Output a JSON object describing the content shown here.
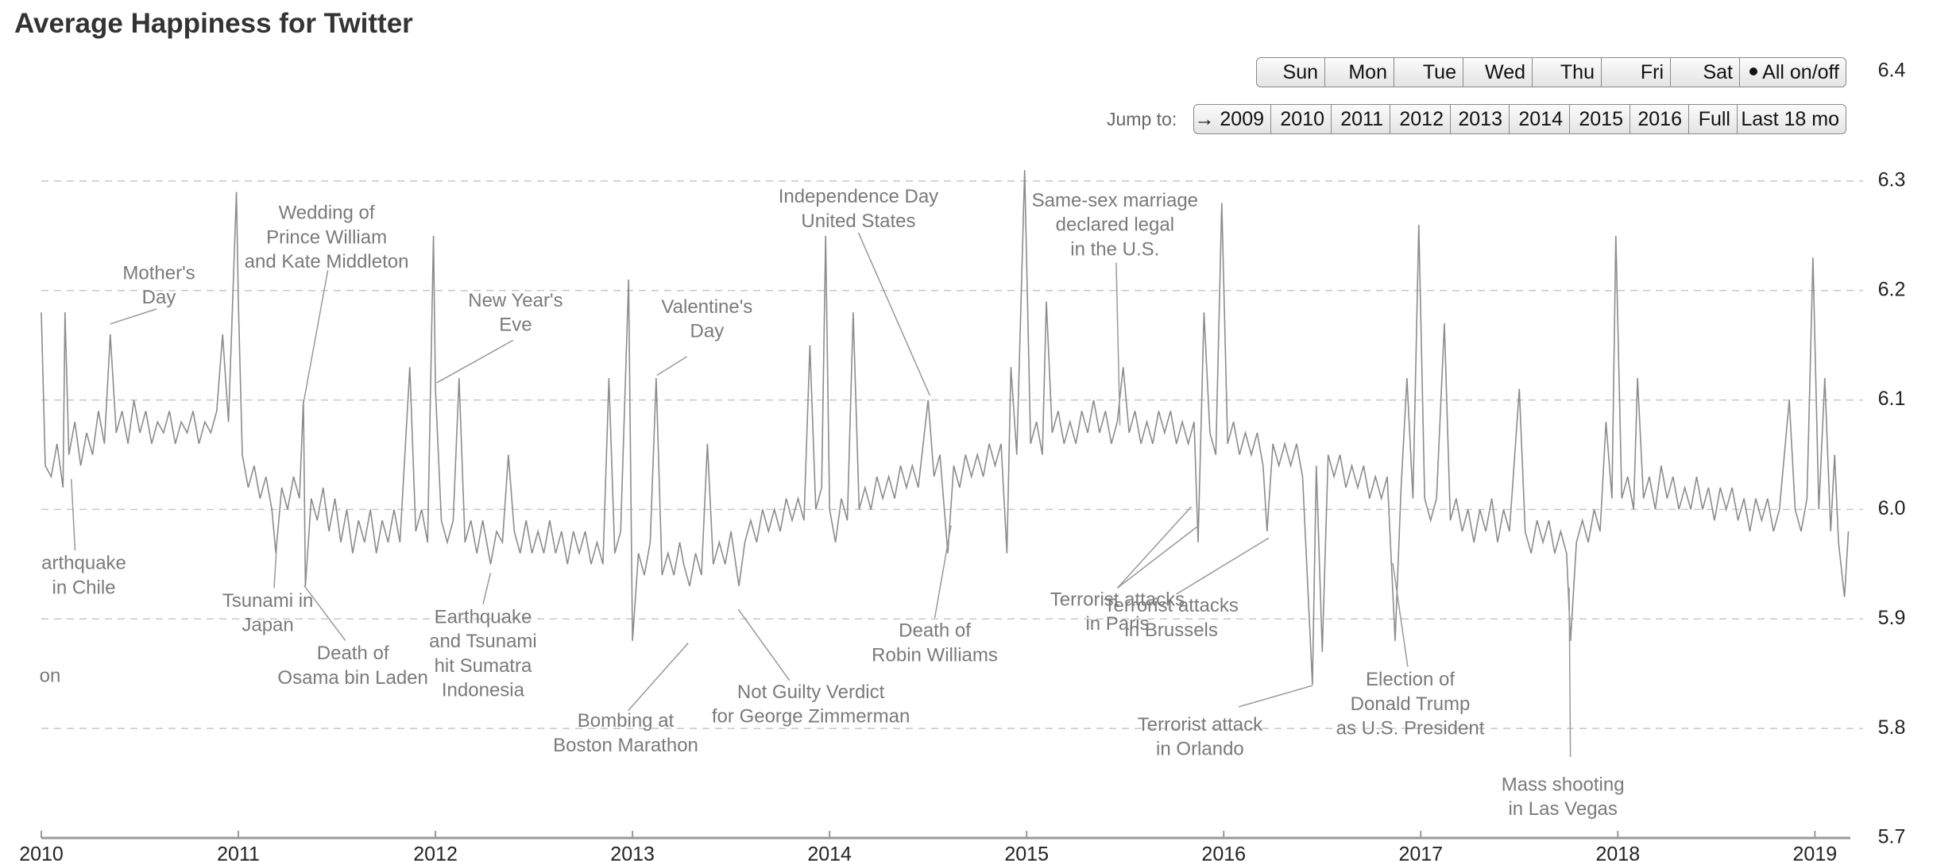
{
  "chart_data": {
    "type": "line",
    "title": "Average Happiness for Twitter",
    "xlim": [
      2010,
      2019.18
    ],
    "xticks": [
      2010,
      2011,
      2012,
      2013,
      2014,
      2015,
      2016,
      2017,
      2018,
      2019
    ],
    "ylim": [
      5.7,
      6.4
    ],
    "yticks": [
      5.7,
      5.8,
      5.9,
      {
        "value": 6,
        "label": "6.0"
      },
      6.1,
      6.2,
      6.3,
      6.4
    ],
    "grid": true,
    "color": "#8c8c8c",
    "x": [
      2010.0,
      2010.02,
      2010.05,
      2010.08,
      2010.11,
      2010.12,
      2010.14,
      2010.17,
      2010.2,
      2010.23,
      2010.26,
      2010.29,
      2010.32,
      2010.35,
      2010.38,
      2010.41,
      2010.44,
      2010.47,
      2010.5,
      2010.53,
      2010.56,
      2010.59,
      2010.62,
      2010.65,
      2010.68,
      2010.71,
      2010.74,
      2010.77,
      2010.8,
      2010.83,
      2010.86,
      2010.89,
      2010.92,
      2010.95,
      2010.99,
      2011.0,
      2011.02,
      2011.05,
      2011.08,
      2011.11,
      2011.14,
      2011.17,
      2011.19,
      2011.22,
      2011.25,
      2011.28,
      2011.31,
      2011.33,
      2011.34,
      2011.37,
      2011.4,
      2011.43,
      2011.46,
      2011.49,
      2011.52,
      2011.55,
      2011.58,
      2011.61,
      2011.64,
      2011.67,
      2011.7,
      2011.73,
      2011.76,
      2011.79,
      2011.82,
      2011.87,
      2011.9,
      2011.93,
      2011.96,
      2011.99,
      2012.0,
      2012.03,
      2012.06,
      2012.09,
      2012.12,
      2012.15,
      2012.18,
      2012.21,
      2012.24,
      2012.28,
      2012.31,
      2012.34,
      2012.37,
      2012.4,
      2012.43,
      2012.46,
      2012.49,
      2012.52,
      2012.55,
      2012.58,
      2012.61,
      2012.64,
      2012.67,
      2012.7,
      2012.73,
      2012.76,
      2012.79,
      2012.82,
      2012.85,
      2012.88,
      2012.91,
      2012.94,
      2012.98,
      2013.0,
      2013.03,
      2013.06,
      2013.09,
      2013.12,
      2013.15,
      2013.18,
      2013.21,
      2013.24,
      2013.26,
      2013.29,
      2013.32,
      2013.35,
      2013.38,
      2013.41,
      2013.44,
      2013.47,
      2013.5,
      2013.54,
      2013.57,
      2013.6,
      2013.63,
      2013.66,
      2013.69,
      2013.72,
      2013.75,
      2013.78,
      2013.81,
      2013.84,
      2013.87,
      2013.9,
      2013.93,
      2013.96,
      2013.98,
      2014.0,
      2014.03,
      2014.06,
      2014.09,
      2014.12,
      2014.15,
      2014.18,
      2014.21,
      2014.24,
      2014.27,
      2014.3,
      2014.33,
      2014.36,
      2014.39,
      2014.42,
      2014.45,
      2014.5,
      2014.53,
      2014.56,
      2014.6,
      2014.63,
      2014.66,
      2014.69,
      2014.72,
      2014.75,
      2014.78,
      2014.81,
      2014.84,
      2014.87,
      2014.9,
      2014.92,
      2014.95,
      2014.99,
      2015.02,
      2015.05,
      2015.08,
      2015.1,
      2015.13,
      2015.16,
      2015.19,
      2015.22,
      2015.25,
      2015.28,
      2015.31,
      2015.34,
      2015.37,
      2015.4,
      2015.43,
      2015.46,
      2015.49,
      2015.52,
      2015.55,
      2015.58,
      2015.61,
      2015.64,
      2015.67,
      2015.7,
      2015.73,
      2015.76,
      2015.79,
      2015.82,
      2015.85,
      2015.87,
      2015.9,
      2015.93,
      2015.96,
      2015.99,
      2016.02,
      2016.05,
      2016.08,
      2016.11,
      2016.14,
      2016.17,
      2016.2,
      2016.22,
      2016.25,
      2016.28,
      2016.31,
      2016.34,
      2016.37,
      2016.4,
      2016.45,
      2016.47,
      2016.5,
      2016.53,
      2016.56,
      2016.59,
      2016.62,
      2016.65,
      2016.68,
      2016.71,
      2016.74,
      2016.77,
      2016.8,
      2016.83,
      2016.87,
      2016.9,
      2016.93,
      2016.96,
      2016.99,
      2017.02,
      2017.05,
      2017.08,
      2017.12,
      2017.15,
      2017.18,
      2017.21,
      2017.24,
      2017.27,
      2017.3,
      2017.33,
      2017.36,
      2017.39,
      2017.42,
      2017.45,
      2017.5,
      2017.53,
      2017.56,
      2017.59,
      2017.62,
      2017.65,
      2017.68,
      2017.71,
      2017.74,
      2017.76,
      2017.79,
      2017.82,
      2017.85,
      2017.88,
      2017.91,
      2017.94,
      2017.97,
      2017.99,
      2018.02,
      2018.05,
      2018.08,
      2018.1,
      2018.13,
      2018.16,
      2018.19,
      2018.22,
      2018.25,
      2018.28,
      2018.31,
      2018.34,
      2018.37,
      2018.4,
      2018.43,
      2018.46,
      2018.49,
      2018.52,
      2018.55,
      2018.58,
      2018.61,
      2018.64,
      2018.67,
      2018.7,
      2018.73,
      2018.76,
      2018.79,
      2018.82,
      2018.87,
      2018.9,
      2018.93,
      2018.96,
      2018.99,
      2019.02,
      2019.05,
      2019.08,
      2019.1,
      2019.12,
      2019.15,
      2019.17
    ],
    "values": [
      6.18,
      6.04,
      6.03,
      6.06,
      6.02,
      6.18,
      6.05,
      6.08,
      6.04,
      6.07,
      6.05,
      6.09,
      6.06,
      6.16,
      6.07,
      6.09,
      6.06,
      6.1,
      6.07,
      6.09,
      6.06,
      6.08,
      6.07,
      6.09,
      6.06,
      6.08,
      6.07,
      6.09,
      6.06,
      6.08,
      6.07,
      6.09,
      6.16,
      6.08,
      6.29,
      6.19,
      6.05,
      6.02,
      6.04,
      6.01,
      6.03,
      6.0,
      5.96,
      6.02,
      6.0,
      6.03,
      6.01,
      6.1,
      5.93,
      6.01,
      5.99,
      6.02,
      5.98,
      6.01,
      5.97,
      6.0,
      5.96,
      5.99,
      5.97,
      6.0,
      5.96,
      5.99,
      5.97,
      6.0,
      5.97,
      6.13,
      5.98,
      6.0,
      5.97,
      6.25,
      6.11,
      5.99,
      5.97,
      5.99,
      6.12,
      5.97,
      5.99,
      5.96,
      5.99,
      5.95,
      5.98,
      5.97,
      6.05,
      5.98,
      5.96,
      5.99,
      5.96,
      5.98,
      5.96,
      5.99,
      5.96,
      5.98,
      5.95,
      5.98,
      5.96,
      5.98,
      5.95,
      5.97,
      5.95,
      6.12,
      5.96,
      5.98,
      6.21,
      5.88,
      5.96,
      5.94,
      5.97,
      6.12,
      5.94,
      5.96,
      5.94,
      5.97,
      5.95,
      5.93,
      5.96,
      5.94,
      6.06,
      5.95,
      5.97,
      5.95,
      5.98,
      5.93,
      5.97,
      5.99,
      5.97,
      6.0,
      5.98,
      6.0,
      5.98,
      6.01,
      5.99,
      6.01,
      5.99,
      6.15,
      6.0,
      6.02,
      6.25,
      6.0,
      5.97,
      6.01,
      5.99,
      6.18,
      6.0,
      6.02,
      6.0,
      6.03,
      6.01,
      6.03,
      6.01,
      6.04,
      6.02,
      6.04,
      6.02,
      6.1,
      6.03,
      6.05,
      5.96,
      6.04,
      6.02,
      6.05,
      6.03,
      6.05,
      6.03,
      6.06,
      6.04,
      6.06,
      5.96,
      6.13,
      6.05,
      6.31,
      6.06,
      6.08,
      6.05,
      6.19,
      6.07,
      6.09,
      6.06,
      6.08,
      6.06,
      6.09,
      6.07,
      6.1,
      6.07,
      6.09,
      6.06,
      6.08,
      6.13,
      6.07,
      6.09,
      6.06,
      6.08,
      6.06,
      6.09,
      6.07,
      6.09,
      6.06,
      6.08,
      6.06,
      6.08,
      5.97,
      6.18,
      6.07,
      6.05,
      6.28,
      6.06,
      6.08,
      6.05,
      6.07,
      6.05,
      6.07,
      6.04,
      5.98,
      6.06,
      6.04,
      6.06,
      6.04,
      6.06,
      6.03,
      5.84,
      6.04,
      5.87,
      6.05,
      6.03,
      6.05,
      6.02,
      6.04,
      6.02,
      6.04,
      6.01,
      6.03,
      6.01,
      6.03,
      5.88,
      6.02,
      6.12,
      6.01,
      6.26,
      6.01,
      5.99,
      6.01,
      6.17,
      5.99,
      6.01,
      5.98,
      6.0,
      5.97,
      6.0,
      5.98,
      6.01,
      5.97,
      6.0,
      5.98,
      6.11,
      5.98,
      5.96,
      5.99,
      5.97,
      5.99,
      5.96,
      5.98,
      5.96,
      5.88,
      5.97,
      5.99,
      5.97,
      6.0,
      5.98,
      6.08,
      6.01,
      6.25,
      6.01,
      6.03,
      6.0,
      6.12,
      6.01,
      6.03,
      6.0,
      6.04,
      6.01,
      6.03,
      6.0,
      6.02,
      6.0,
      6.03,
      6.0,
      6.02,
      5.99,
      6.02,
      6.0,
      6.02,
      5.99,
      6.01,
      5.98,
      6.01,
      5.99,
      6.01,
      5.98,
      6.0,
      6.1,
      6.0,
      5.98,
      6.01,
      6.23,
      6.0,
      6.12,
      5.98,
      6.05,
      5.97,
      5.92,
      5.98
    ],
    "annotations": [
      {
        "lines": [
          "arthquake",
          "in Chile"
        ]
      },
      {
        "lines": [
          "on"
        ]
      },
      {
        "lines": [
          "Mother's",
          "Day"
        ]
      },
      {
        "lines": [
          "Wedding of",
          "Prince William",
          "and Kate Middleton"
        ]
      },
      {
        "lines": [
          "Tsunami in",
          "Japan"
        ]
      },
      {
        "lines": [
          "Death of",
          "Osama bin Laden"
        ]
      },
      {
        "lines": [
          "New Year's",
          "Eve"
        ]
      },
      {
        "lines": [
          "Earthquake",
          "and Tsunami",
          "hit Sumatra",
          "Indonesia"
        ]
      },
      {
        "lines": [
          "Valentine's",
          "Day"
        ]
      },
      {
        "lines": [
          "Bombing at",
          "Boston Marathon"
        ]
      },
      {
        "lines": [
          "Not Guilty Verdict",
          "for George Zimmerman"
        ]
      },
      {
        "lines": [
          "Independence Day",
          "United States"
        ]
      },
      {
        "lines": [
          "Death of",
          "Robin Williams"
        ]
      },
      {
        "lines": [
          "Same-sex marriage",
          "declared legal",
          "in the U.S."
        ]
      },
      {
        "lines": [
          "Terrorist attacks",
          "in Paris"
        ]
      },
      {
        "lines": [
          "Terrorist attacks",
          "in Brussels"
        ]
      },
      {
        "lines": [
          "Terrorist attack",
          "in Orlando"
        ]
      },
      {
        "lines": [
          "Election of",
          "Donald Trump",
          "as U.S. President"
        ]
      },
      {
        "lines": [
          "Mass shooting",
          "in Las Vegas"
        ]
      }
    ]
  },
  "controls": {
    "days": [
      "Sun",
      "Mon",
      "Tue",
      "Wed",
      "Thu",
      "Fri",
      "Sat"
    ],
    "toggle_all": "All on/off",
    "jump_label": "Jump to:",
    "jump": [
      "→ 2009",
      "2010",
      "2011",
      "2012",
      "2013",
      "2014",
      "2015",
      "2016",
      "Full",
      "Last 18 mo"
    ]
  }
}
